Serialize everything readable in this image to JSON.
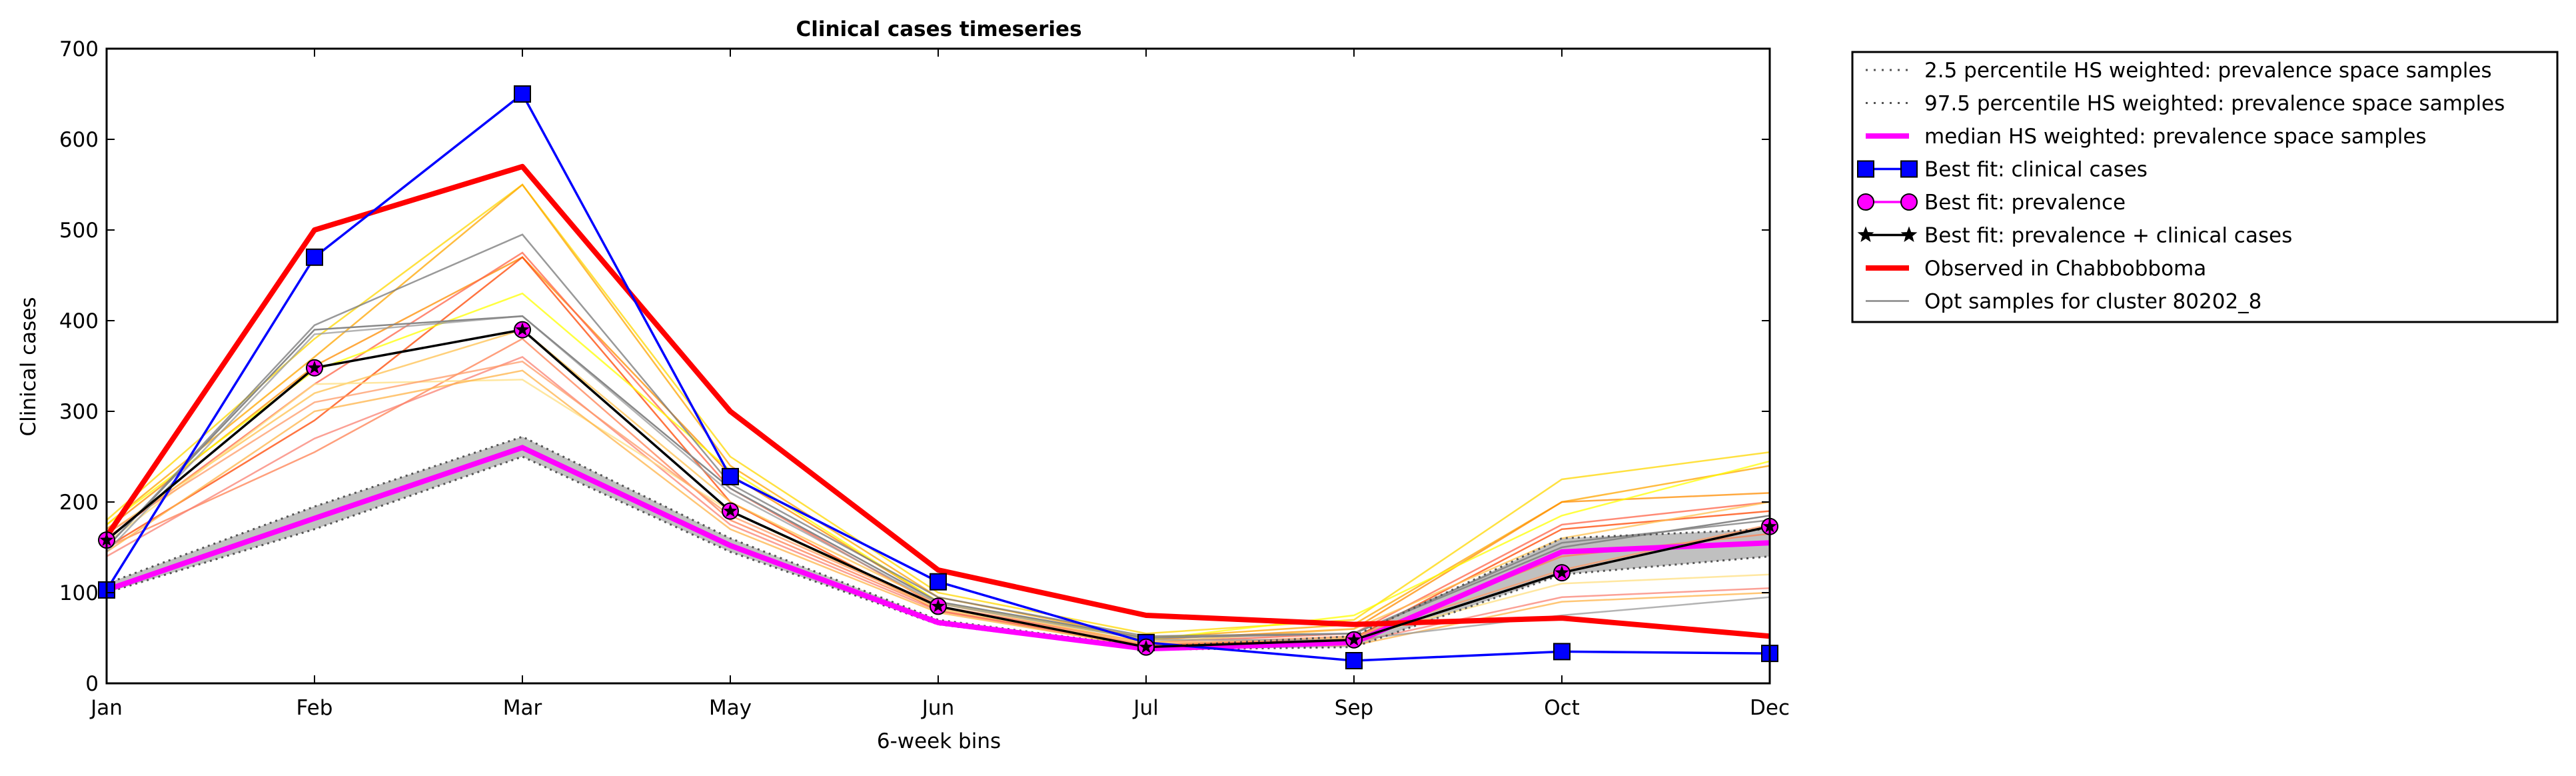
{
  "chart_data": {
    "type": "line",
    "title": "Clinical cases timeseries",
    "xlabel": "6-week bins",
    "ylabel": "Clinical cases",
    "categories": [
      "Jan",
      "Feb",
      "Mar",
      "May",
      "Jun",
      "Jul",
      "Sep",
      "Oct",
      "Dec"
    ],
    "yticks": [
      0,
      100,
      200,
      300,
      400,
      500,
      600,
      700
    ],
    "ylim": [
      0,
      700
    ],
    "grid": false,
    "legend_position": "outside-right",
    "band": {
      "lower": [
        100,
        170,
        250,
        145,
        65,
        37,
        40,
        120,
        140
      ],
      "upper": [
        110,
        195,
        272,
        160,
        70,
        40,
        52,
        160,
        170
      ],
      "color": "#c0c0c0"
    },
    "series": [
      {
        "name": "2.5 percentile HS weighted: prevalence space samples",
        "style": "dotted",
        "color": "#555555",
        "values": [
          100,
          170,
          250,
          145,
          65,
          37,
          40,
          120,
          140
        ]
      },
      {
        "name": "97.5 percentile HS weighted: prevalence space samples",
        "style": "dotted",
        "color": "#555555",
        "values": [
          110,
          195,
          272,
          160,
          70,
          40,
          52,
          160,
          170
        ]
      },
      {
        "name": "median HS weighted: prevalence space samples",
        "style": "solid",
        "color": "#ff00ff",
        "values": [
          103,
          182,
          260,
          152,
          67,
          38,
          45,
          145,
          155
        ]
      },
      {
        "name": "Best fit: clinical cases",
        "style": "square-marker",
        "color": "#0000ff",
        "values": [
          103,
          470,
          650,
          228,
          112,
          45,
          25,
          35,
          33
        ]
      },
      {
        "name": "Best fit: prevalence",
        "style": "circle-marker",
        "color": "#ff00ff",
        "values": [
          158,
          348,
          390,
          190,
          85,
          40,
          48,
          122,
          173
        ]
      },
      {
        "name": "Best fit: prevalence + clinical cases",
        "style": "star-marker",
        "color": "#000000",
        "values": [
          158,
          348,
          390,
          190,
          85,
          40,
          48,
          122,
          173
        ]
      },
      {
        "name": "Observed in Chabbobboma",
        "style": "thick",
        "color": "#ff0000",
        "values": [
          162,
          500,
          570,
          300,
          125,
          75,
          65,
          72,
          52
        ]
      },
      {
        "name": "Opt samples for cluster 80202_8",
        "style": "thin",
        "color": "#888888",
        "values": [
          150,
          390,
          405,
          215,
          90,
          50,
          55,
          150,
          185
        ]
      }
    ],
    "samples": [
      {
        "color": "#ffd700",
        "values": [
          180,
          380,
          550,
          250,
          100,
          55,
          70,
          225,
          255
        ]
      },
      {
        "color": "#ffa500",
        "values": [
          175,
          360,
          550,
          240,
          95,
          50,
          65,
          200,
          240
        ]
      },
      {
        "color": "#ff8c00",
        "values": [
          170,
          350,
          470,
          230,
          90,
          48,
          60,
          200,
          210
        ]
      },
      {
        "color": "#ff6347",
        "values": [
          160,
          330,
          475,
          215,
          85,
          45,
          55,
          175,
          200
        ]
      },
      {
        "color": "#ff4500",
        "values": [
          150,
          290,
          470,
          200,
          80,
          42,
          50,
          170,
          190
        ]
      },
      {
        "color": "#ffff00",
        "values": [
          175,
          345,
          430,
          235,
          90,
          48,
          75,
          185,
          245
        ]
      },
      {
        "color": "#ffc04d",
        "values": [
          165,
          320,
          390,
          200,
          88,
          45,
          60,
          160,
          200
        ]
      },
      {
        "color": "#ff7f50",
        "values": [
          150,
          255,
          380,
          180,
          82,
          42,
          50,
          140,
          165
        ]
      },
      {
        "color": "#fa8072",
        "values": [
          140,
          270,
          360,
          175,
          80,
          40,
          45,
          95,
          105
        ]
      },
      {
        "color": "#ffdf80",
        "values": [
          155,
          330,
          335,
          190,
          82,
          44,
          50,
          110,
          120
        ]
      },
      {
        "color": "#ffb347",
        "values": [
          145,
          300,
          345,
          170,
          78,
          40,
          42,
          90,
          100
        ]
      },
      {
        "color": "#ff9966",
        "values": [
          165,
          310,
          355,
          185,
          84,
          43,
          52,
          125,
          175
        ]
      },
      {
        "color": "#777777",
        "values": [
          150,
          395,
          495,
          220,
          95,
          52,
          55,
          155,
          180
        ]
      },
      {
        "color": "#999999",
        "values": [
          145,
          385,
          405,
          210,
          88,
          48,
          48,
          75,
          95
        ]
      }
    ]
  }
}
